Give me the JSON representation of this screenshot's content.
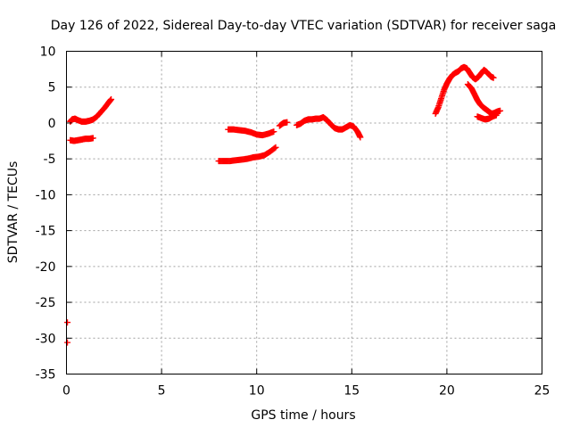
{
  "chart_data": {
    "type": "scatter",
    "title": "Day 126 of 2022, Sidereal Day-to-day VTEC variation (SDTVAR) for receiver saga",
    "xlabel": "GPS time / hours",
    "ylabel": "SDTVAR / TECUs",
    "xlim": [
      0,
      25
    ],
    "ylim": [
      -35,
      10
    ],
    "xticks": [
      0,
      5,
      10,
      15,
      20,
      25
    ],
    "yticks": [
      10,
      5,
      0,
      -5,
      -10,
      -15,
      -20,
      -25,
      -30,
      -35
    ],
    "grid": true,
    "marker": "plus",
    "series_color": "#ff0000",
    "series": [
      {
        "name": "seg1",
        "points": [
          [
            0.2,
            0.2
          ],
          [
            0.3,
            0.5
          ],
          [
            0.45,
            0.6
          ],
          [
            0.6,
            0.4
          ],
          [
            0.8,
            0.2
          ],
          [
            1.0,
            0.2
          ],
          [
            1.2,
            0.3
          ],
          [
            1.4,
            0.5
          ],
          [
            1.6,
            0.9
          ],
          [
            1.8,
            1.5
          ],
          [
            2.0,
            2.1
          ],
          [
            2.2,
            2.8
          ],
          [
            2.35,
            3.3
          ]
        ]
      },
      {
        "name": "seg2",
        "points": [
          [
            0.2,
            -2.4
          ],
          [
            0.4,
            -2.5
          ],
          [
            0.6,
            -2.4
          ],
          [
            0.8,
            -2.3
          ],
          [
            1.0,
            -2.2
          ],
          [
            1.2,
            -2.2
          ],
          [
            1.4,
            -2.1
          ]
        ]
      },
      {
        "name": "seg3",
        "points": [
          [
            8.5,
            -0.9
          ],
          [
            8.8,
            -0.9
          ],
          [
            9.1,
            -1.0
          ],
          [
            9.4,
            -1.1
          ],
          [
            9.7,
            -1.3
          ],
          [
            10.0,
            -1.6
          ],
          [
            10.3,
            -1.7
          ],
          [
            10.6,
            -1.5
          ],
          [
            10.9,
            -1.2
          ]
        ]
      },
      {
        "name": "seg4",
        "points": [
          [
            8.0,
            -5.3
          ],
          [
            8.3,
            -5.3
          ],
          [
            8.6,
            -5.3
          ],
          [
            8.9,
            -5.2
          ],
          [
            9.2,
            -5.1
          ],
          [
            9.5,
            -5.0
          ],
          [
            9.8,
            -4.8
          ],
          [
            10.1,
            -4.7
          ],
          [
            10.4,
            -4.5
          ],
          [
            10.7,
            -4.0
          ],
          [
            11.0,
            -3.4
          ]
        ]
      },
      {
        "name": "seg5",
        "points": [
          [
            11.2,
            -0.4
          ],
          [
            11.4,
            0.0
          ],
          [
            11.6,
            0.1
          ]
        ]
      },
      {
        "name": "seg6",
        "points": [
          [
            12.1,
            -0.3
          ],
          [
            12.3,
            -0.1
          ],
          [
            12.5,
            0.3
          ],
          [
            12.7,
            0.5
          ],
          [
            12.9,
            0.5
          ],
          [
            13.1,
            0.6
          ],
          [
            13.3,
            0.6
          ],
          [
            13.5,
            0.8
          ],
          [
            13.7,
            0.4
          ],
          [
            13.9,
            -0.2
          ],
          [
            14.1,
            -0.7
          ],
          [
            14.3,
            -0.9
          ],
          [
            14.5,
            -0.9
          ],
          [
            14.7,
            -0.6
          ],
          [
            14.9,
            -0.3
          ],
          [
            15.1,
            -0.5
          ],
          [
            15.3,
            -1.2
          ],
          [
            15.45,
            -2.0
          ]
        ]
      },
      {
        "name": "seg7",
        "points": [
          [
            19.4,
            1.3
          ],
          [
            19.55,
            2.2
          ],
          [
            19.7,
            3.4
          ],
          [
            19.85,
            4.6
          ],
          [
            20.0,
            5.5
          ],
          [
            20.15,
            6.2
          ],
          [
            20.3,
            6.7
          ],
          [
            20.45,
            7.0
          ],
          [
            20.6,
            7.2
          ],
          [
            20.75,
            7.6
          ],
          [
            20.9,
            7.8
          ],
          [
            21.05,
            7.6
          ],
          [
            21.2,
            7.0
          ],
          [
            21.35,
            6.4
          ],
          [
            21.5,
            6.1
          ],
          [
            21.65,
            6.4
          ],
          [
            21.8,
            6.9
          ],
          [
            21.95,
            7.4
          ],
          [
            22.1,
            7.1
          ],
          [
            22.3,
            6.5
          ],
          [
            22.45,
            6.3
          ]
        ]
      },
      {
        "name": "seg8",
        "points": [
          [
            21.1,
            5.4
          ],
          [
            21.3,
            4.8
          ],
          [
            21.45,
            4.0
          ],
          [
            21.6,
            3.2
          ],
          [
            21.75,
            2.6
          ],
          [
            21.9,
            2.2
          ],
          [
            22.05,
            1.9
          ],
          [
            22.2,
            1.6
          ],
          [
            22.35,
            1.3
          ],
          [
            22.5,
            1.4
          ],
          [
            22.65,
            1.6
          ],
          [
            22.8,
            1.7
          ]
        ]
      },
      {
        "name": "seg9",
        "points": [
          [
            21.6,
            0.9
          ],
          [
            21.8,
            0.7
          ],
          [
            22.0,
            0.5
          ],
          [
            22.2,
            0.6
          ],
          [
            22.4,
            0.9
          ],
          [
            22.6,
            1.1
          ]
        ]
      },
      {
        "name": "outliers",
        "points": [
          [
            0.05,
            -27.8
          ],
          [
            0.05,
            -30.6
          ]
        ]
      }
    ]
  }
}
